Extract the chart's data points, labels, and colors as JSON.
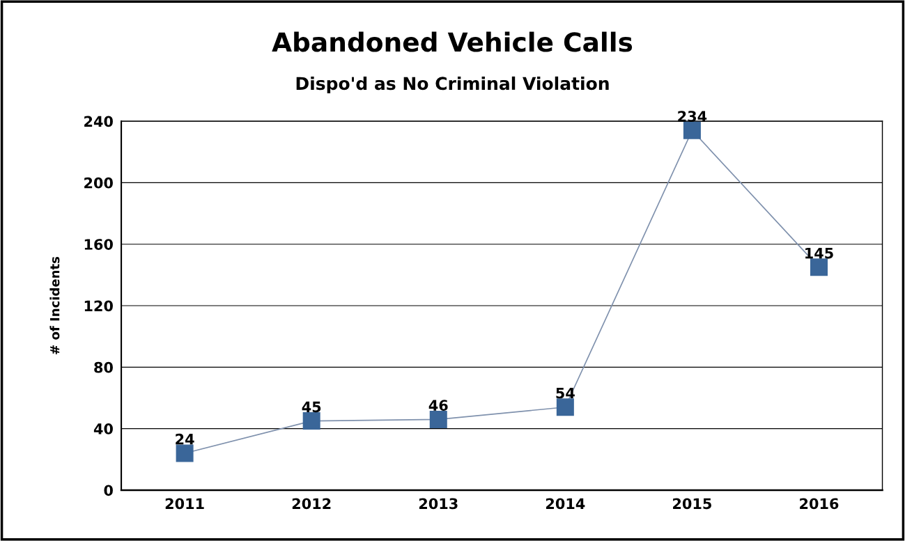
{
  "chart_data": {
    "type": "line",
    "title": "Abandoned Vehicle Calls",
    "subtitle": "Dispo'd as No Criminal Violation",
    "ylabel": "# of Incidents",
    "categories": [
      "2011",
      "2012",
      "2013",
      "2014",
      "2015",
      "2016"
    ],
    "series": [
      {
        "color": "#3a6699",
        "values": [
          24,
          45,
          46,
          54,
          234,
          145
        ]
      }
    ],
    "ylim": [
      0,
      240
    ],
    "yticks": [
      0,
      40,
      80,
      120,
      160,
      200,
      240
    ],
    "grid": "y",
    "marker": "square",
    "line_style": "solid",
    "data_labels": true
  }
}
